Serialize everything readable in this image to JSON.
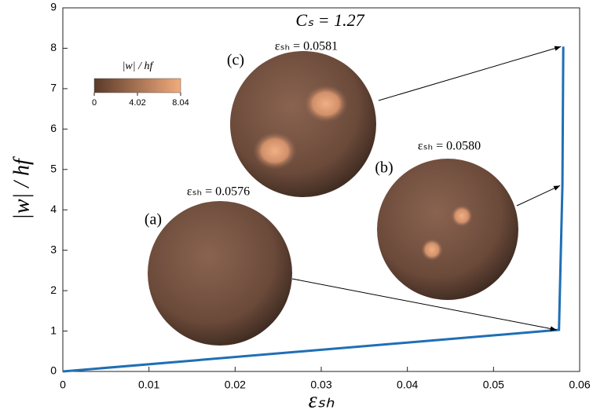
{
  "chart_data": {
    "type": "line",
    "title": "Cₛ = 1.27",
    "x_label": "εₛₕ",
    "y_label": "|w| / hf",
    "series": [
      {
        "color": "#1f6fb4",
        "x": [
          0,
          0.0576,
          0.058,
          0.0581
        ],
        "values": [
          0,
          1.03,
          4.6,
          8.04
        ]
      }
    ],
    "xlim": [
      0,
      0.06
    ],
    "xticks": [
      0,
      0.01,
      0.02,
      0.03,
      0.04,
      0.05,
      0.06
    ],
    "ylim": [
      0,
      9
    ],
    "yticks": [
      0,
      1,
      2,
      3,
      4,
      5,
      6,
      7,
      8,
      9
    ],
    "grid": false,
    "colorbar": {
      "label": "|w| / hf",
      "clim": [
        0,
        8.04
      ],
      "ticks": [
        0,
        4.02,
        8.04
      ]
    },
    "annotations": [
      {
        "label": "(a)",
        "text": "εₛₕ = 0.0576"
      },
      {
        "label": "(b)",
        "text": "εₛₕ = 0.0580"
      },
      {
        "label": "(c)",
        "text": "εₛₕ = 0.0581"
      }
    ]
  }
}
